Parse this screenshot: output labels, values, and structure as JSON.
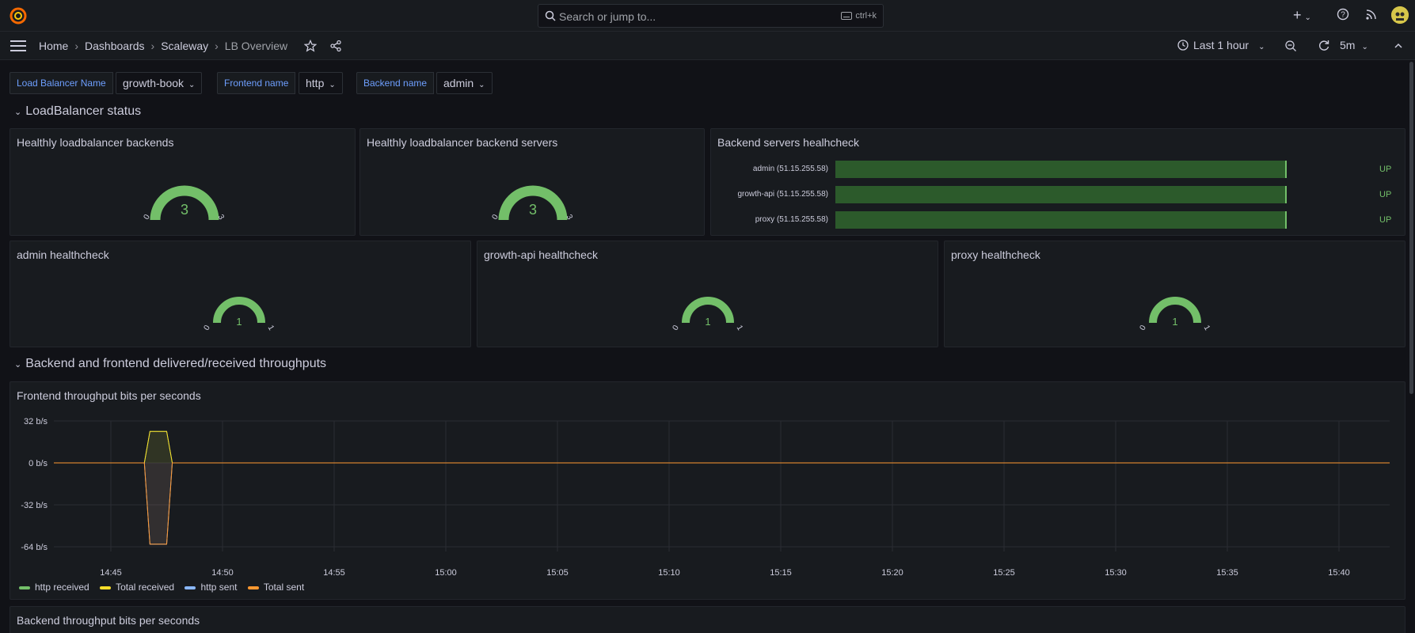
{
  "search": {
    "placeholder": "Search or jump to...",
    "shortcut": "ctrl+k"
  },
  "breadcrumb": [
    "Home",
    "Dashboards",
    "Scaleway",
    "LB Overview"
  ],
  "time_picker": {
    "label": "Last 1 hour"
  },
  "refresh": {
    "interval": "5m"
  },
  "variables": [
    {
      "label": "Load Balancer Name",
      "value": "growth-book"
    },
    {
      "label": "Frontend name",
      "value": "http"
    },
    {
      "label": "Backend name",
      "value": "admin"
    }
  ],
  "rows": {
    "lb_status": "LoadBalancer status",
    "throughputs": "Backend and frontend delivered/received throughputs"
  },
  "panels": {
    "healthy_backends": {
      "title": "Healthly loadbalancer backends",
      "value": "3",
      "min": "0",
      "max": "3"
    },
    "healthy_servers": {
      "title": "Healthly loadbalancer backend servers",
      "value": "3",
      "min": "0",
      "max": "3"
    },
    "backend_health": {
      "title": "Backend servers healhcheck",
      "items": [
        {
          "label": "admin (51.15.255.58)",
          "value": "UP"
        },
        {
          "label": "growth-api (51.15.255.58)",
          "value": "UP"
        },
        {
          "label": "proxy (51.15.255.58)",
          "value": "UP"
        }
      ]
    },
    "admin_hc": {
      "title": "admin healthcheck",
      "value": "1",
      "min": "0",
      "max": "1"
    },
    "growth_hc": {
      "title": "growth-api healthcheck",
      "value": "1",
      "min": "0",
      "max": "1"
    },
    "proxy_hc": {
      "title": "proxy healthcheck",
      "value": "1",
      "min": "0",
      "max": "1"
    },
    "frontend_tp": {
      "title": "Frontend throughput bits per seconds"
    },
    "backend_tp": {
      "title": "Backend throughput bits per seconds"
    }
  },
  "colors": {
    "green": "#73bf69",
    "yellow": "#fade2a",
    "blue": "#8ab8ff",
    "orange": "#ff9830",
    "link": "#6e9fff"
  },
  "chart_data": {
    "type": "line",
    "title": "Frontend throughput bits per seconds",
    "yticks": [
      "32 b/s",
      "0 b/s",
      "-32 b/s",
      "-64 b/s"
    ],
    "ylim": [
      -64,
      32
    ],
    "xticks": [
      "14:45",
      "14:50",
      "14:55",
      "15:00",
      "15:05",
      "15:10",
      "15:15",
      "15:20",
      "15:25",
      "15:30",
      "15:35",
      "15:40"
    ],
    "series": [
      {
        "name": "http received",
        "color": "#73bf69",
        "x": [
          "14:46:30",
          "14:46:45",
          "14:47:30",
          "14:47:45"
        ],
        "values": [
          0,
          24,
          24,
          0
        ]
      },
      {
        "name": "Total received",
        "color": "#fade2a",
        "x": [
          "14:46:30",
          "14:46:45",
          "14:47:30",
          "14:47:45"
        ],
        "values": [
          0,
          24,
          24,
          0
        ]
      },
      {
        "name": "http sent",
        "color": "#8ab8ff",
        "x": [
          "14:46:30",
          "14:46:45",
          "14:47:30",
          "14:47:45"
        ],
        "values": [
          0,
          -62,
          -62,
          0
        ]
      },
      {
        "name": "Total sent",
        "color": "#ff9830",
        "x": [
          "14:46:30",
          "14:46:45",
          "14:47:30",
          "14:47:45"
        ],
        "values": [
          0,
          -62,
          -62,
          0
        ]
      }
    ],
    "grid": true,
    "legend": "bottom-left"
  }
}
